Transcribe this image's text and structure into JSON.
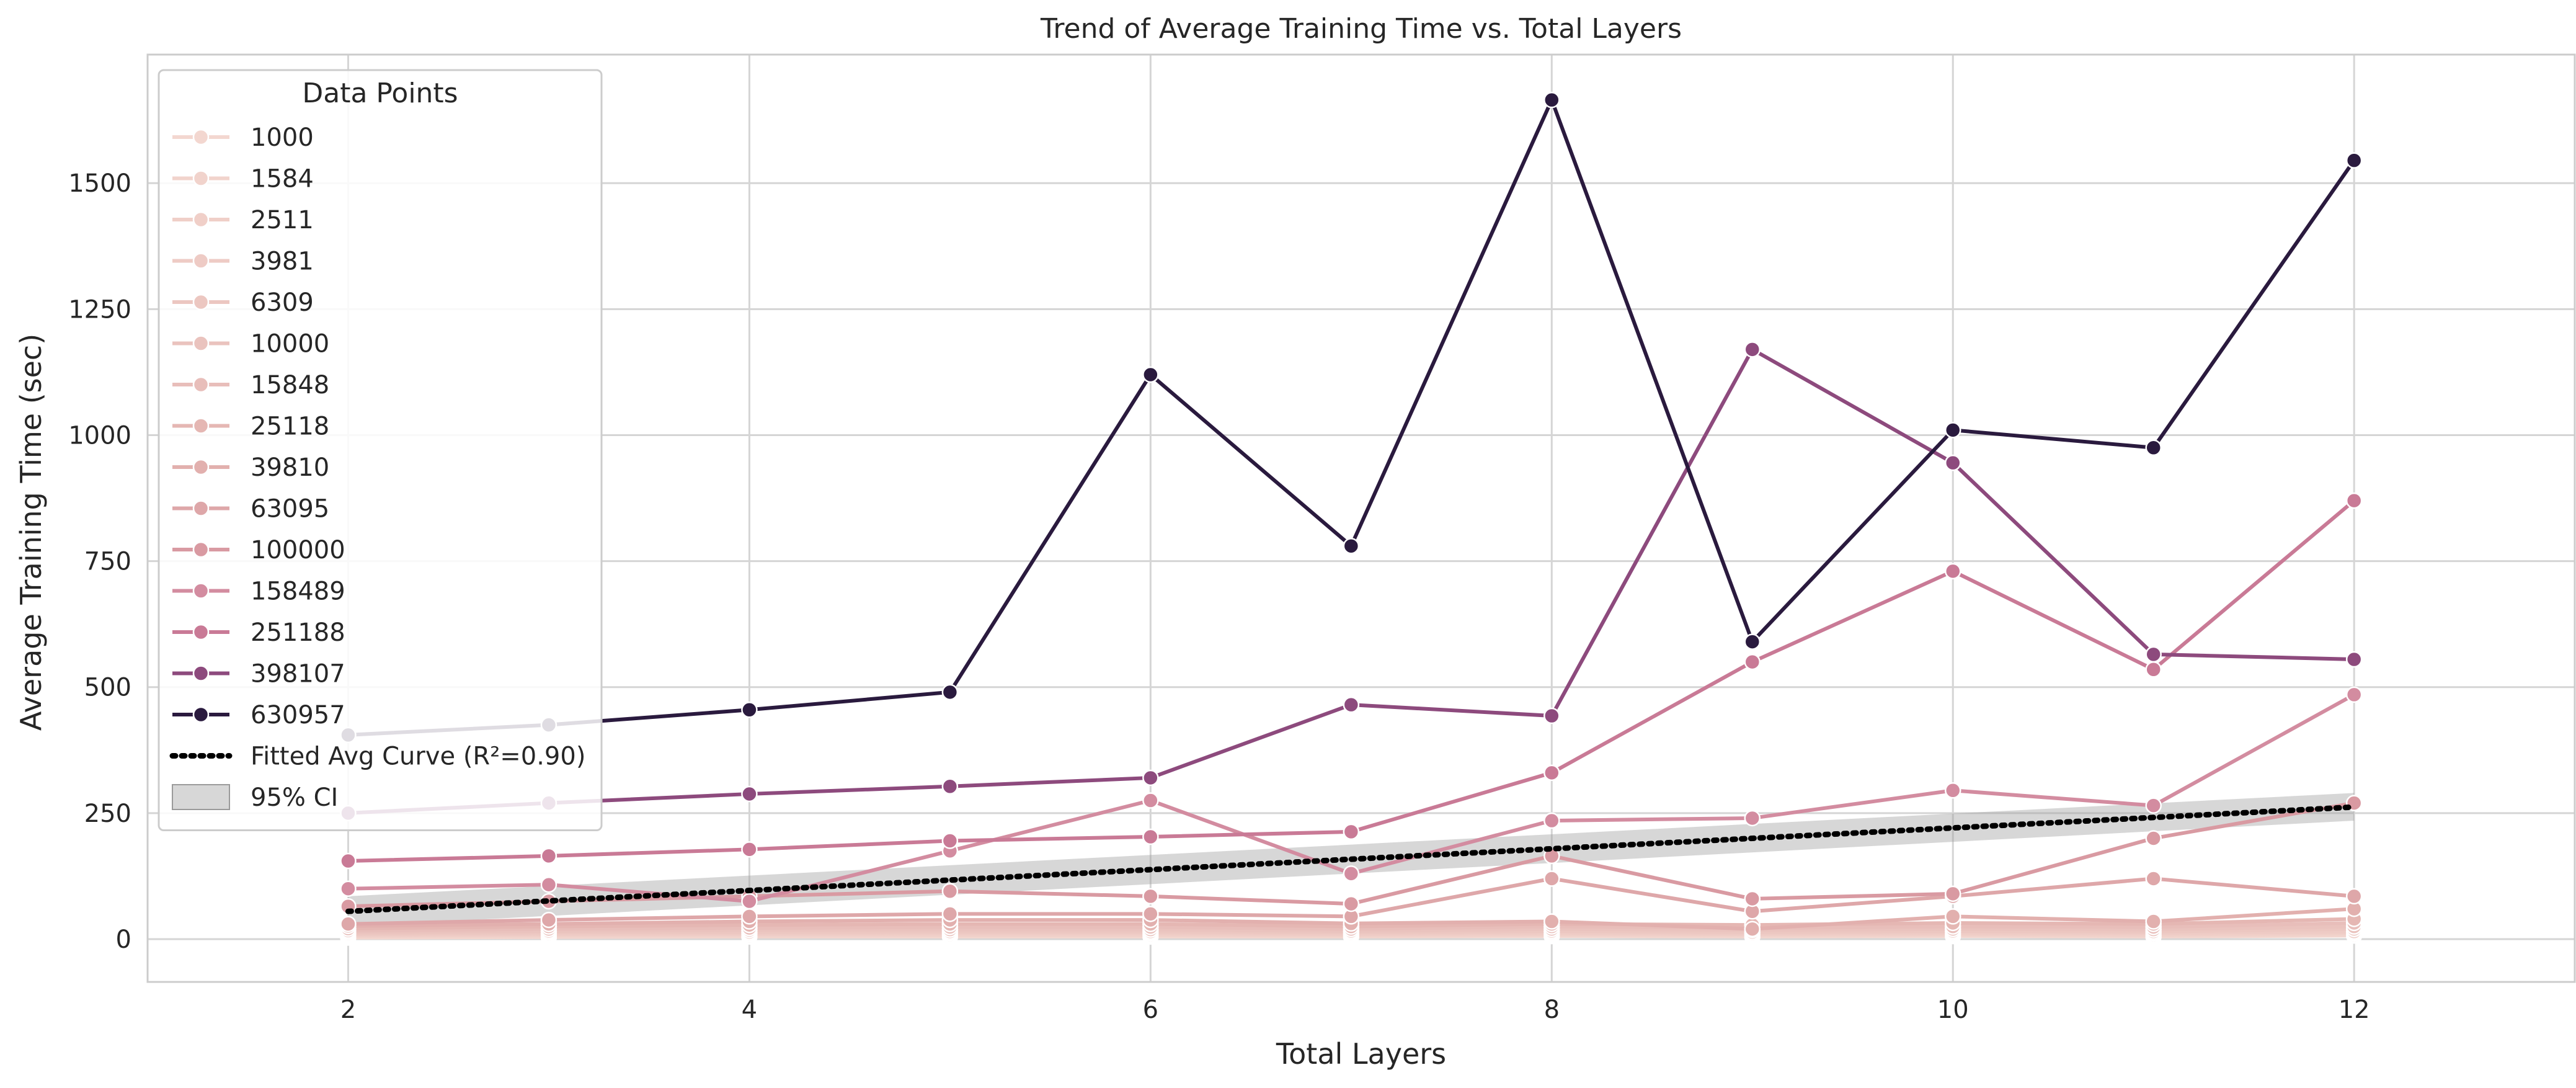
{
  "chart_data": {
    "type": "line",
    "title": "Trend of Average Training Time vs. Total Layers",
    "xlabel": "Total Layers",
    "ylabel": "Average Training Time (sec)",
    "xlim": [
      1.0,
      13.1
    ],
    "ylim": [
      -85,
      1755
    ],
    "xticks": [
      2,
      4,
      6,
      8,
      10,
      12
    ],
    "yticks": [
      0,
      250,
      500,
      750,
      1000,
      1250,
      1500
    ],
    "grid": true,
    "legend": {
      "title": "Data Points",
      "placement": "top-left"
    },
    "x": [
      2,
      3,
      4,
      5,
      6,
      7,
      8,
      9,
      10,
      11,
      12
    ],
    "series": [
      {
        "name": "1000",
        "color": "#f3d7d0",
        "values": [
          3,
          4,
          5,
          5,
          5,
          5,
          6,
          5,
          6,
          5,
          7
        ]
      },
      {
        "name": "1584",
        "color": "#f1d3cc",
        "values": [
          5,
          6,
          6,
          7,
          7,
          6,
          8,
          7,
          8,
          7,
          9
        ]
      },
      {
        "name": "2511",
        "color": "#f0cfc8",
        "values": [
          7,
          8,
          9,
          9,
          9,
          8,
          10,
          9,
          10,
          9,
          12
        ]
      },
      {
        "name": "3981",
        "color": "#eecbc5",
        "values": [
          9,
          10,
          11,
          12,
          12,
          10,
          13,
          11,
          13,
          12,
          15
        ]
      },
      {
        "name": "6309",
        "color": "#ecc7c1",
        "values": [
          11,
          13,
          14,
          15,
          15,
          13,
          16,
          14,
          16,
          15,
          20
        ]
      },
      {
        "name": "10000",
        "color": "#eac3be",
        "values": [
          14,
          16,
          18,
          19,
          19,
          16,
          20,
          18,
          20,
          19,
          25
        ]
      },
      {
        "name": "15848",
        "color": "#e8beba",
        "values": [
          17,
          20,
          22,
          24,
          24,
          20,
          25,
          22,
          25,
          24,
          32
        ]
      },
      {
        "name": "25118",
        "color": "#e5b7b3",
        "values": [
          21,
          25,
          28,
          30,
          30,
          25,
          30,
          28,
          32,
          30,
          40
        ]
      },
      {
        "name": "39810",
        "color": "#e2b0ae",
        "values": [
          26,
          30,
          35,
          38,
          38,
          31,
          35,
          20,
          45,
          35,
          60
        ]
      },
      {
        "name": "63095",
        "color": "#dea7a9",
        "values": [
          30,
          38,
          45,
          50,
          50,
          45,
          120,
          55,
          85,
          120,
          85
        ]
      },
      {
        "name": "100000",
        "color": "#d99aa2",
        "values": [
          65,
          75,
          85,
          95,
          85,
          70,
          165,
          80,
          90,
          200,
          270
        ]
      },
      {
        "name": "158489",
        "color": "#d38ca0",
        "values": [
          100,
          108,
          75,
          175,
          275,
          130,
          235,
          240,
          295,
          265,
          485
        ]
      },
      {
        "name": "251188",
        "color": "#c97a96",
        "values": [
          155,
          165,
          178,
          195,
          203,
          213,
          330,
          550,
          730,
          535,
          870
        ]
      },
      {
        "name": "398107",
        "color": "#8d4a7d",
        "values": [
          250,
          270,
          288,
          303,
          320,
          465,
          443,
          1170,
          945,
          565,
          555
        ]
      },
      {
        "name": "630957",
        "color": "#2a1a3e",
        "values": [
          405,
          425,
          455,
          490,
          1120,
          780,
          1665,
          590,
          1010,
          975,
          1545
        ]
      }
    ],
    "fitted_curve": {
      "name": "Fitted Avg Curve (R²=0.90)",
      "color": "#000000",
      "x": [
        2,
        12
      ],
      "values": [
        55,
        262
      ],
      "ci_name": "95% CI",
      "ci_lower": [
        25,
        235
      ],
      "ci_upper": [
        85,
        290
      ]
    }
  }
}
